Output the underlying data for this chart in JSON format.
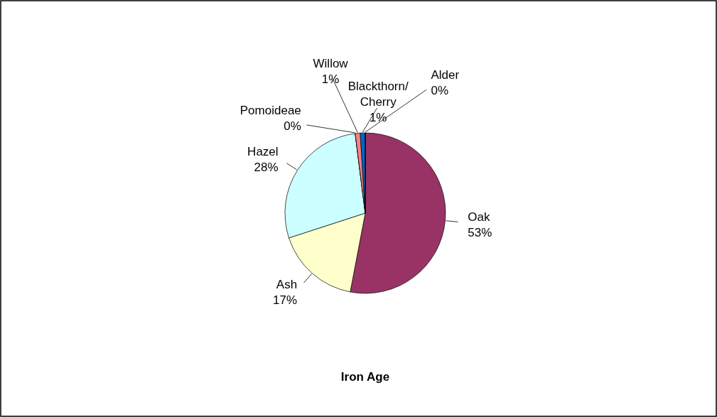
{
  "chart_data": {
    "type": "pie",
    "title": "Iron Age",
    "categories": [
      "Oak",
      "Ash",
      "Hazel",
      "Pomoideae",
      "Willow",
      "Blackthorn/\nCherry",
      "Alder"
    ],
    "values": [
      53,
      17,
      28,
      0,
      1,
      1,
      0
    ],
    "value_labels": [
      "53%",
      "17%",
      "28%",
      "0%",
      "1%",
      "1%",
      "0%"
    ],
    "colors": [
      "#993366",
      "#ffffcc",
      "#ccffff",
      "#000000",
      "#ff8080",
      "#0066cc",
      "#000080"
    ]
  }
}
